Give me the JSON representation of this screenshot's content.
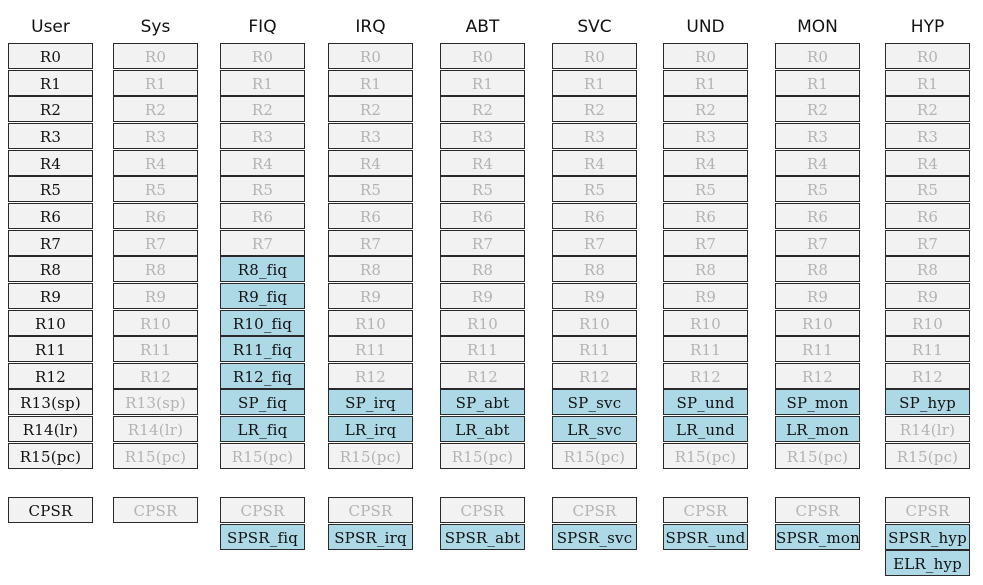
{
  "columns": [
    {
      "title": "User",
      "registers": [
        {
          "label": "R0",
          "kind": "own"
        },
        {
          "label": "R1",
          "kind": "own"
        },
        {
          "label": "R2",
          "kind": "own"
        },
        {
          "label": "R3",
          "kind": "own"
        },
        {
          "label": "R4",
          "kind": "own"
        },
        {
          "label": "R5",
          "kind": "own"
        },
        {
          "label": "R6",
          "kind": "own"
        },
        {
          "label": "R7",
          "kind": "own"
        },
        {
          "label": "R8",
          "kind": "own"
        },
        {
          "label": "R9",
          "kind": "own"
        },
        {
          "label": "R10",
          "kind": "own"
        },
        {
          "label": "R11",
          "kind": "own"
        },
        {
          "label": "R12",
          "kind": "own"
        },
        {
          "label": "R13(sp)",
          "kind": "own"
        },
        {
          "label": "R14(lr)",
          "kind": "own"
        },
        {
          "label": "R15(pc)",
          "kind": "own"
        }
      ],
      "status": [
        {
          "label": "CPSR",
          "kind": "own"
        }
      ]
    },
    {
      "title": "Sys",
      "registers": [
        {
          "label": "R0",
          "kind": "shared"
        },
        {
          "label": "R1",
          "kind": "shared"
        },
        {
          "label": "R2",
          "kind": "shared"
        },
        {
          "label": "R3",
          "kind": "shared"
        },
        {
          "label": "R4",
          "kind": "shared"
        },
        {
          "label": "R5",
          "kind": "shared"
        },
        {
          "label": "R6",
          "kind": "shared"
        },
        {
          "label": "R7",
          "kind": "shared"
        },
        {
          "label": "R8",
          "kind": "shared"
        },
        {
          "label": "R9",
          "kind": "shared"
        },
        {
          "label": "R10",
          "kind": "shared"
        },
        {
          "label": "R11",
          "kind": "shared"
        },
        {
          "label": "R12",
          "kind": "shared"
        },
        {
          "label": "R13(sp)",
          "kind": "shared"
        },
        {
          "label": "R14(lr)",
          "kind": "shared"
        },
        {
          "label": "R15(pc)",
          "kind": "shared"
        }
      ],
      "status": [
        {
          "label": "CPSR",
          "kind": "shared"
        }
      ]
    },
    {
      "title": "FIQ",
      "registers": [
        {
          "label": "R0",
          "kind": "shared"
        },
        {
          "label": "R1",
          "kind": "shared"
        },
        {
          "label": "R2",
          "kind": "shared"
        },
        {
          "label": "R3",
          "kind": "shared"
        },
        {
          "label": "R4",
          "kind": "shared"
        },
        {
          "label": "R5",
          "kind": "shared"
        },
        {
          "label": "R6",
          "kind": "shared"
        },
        {
          "label": "R7",
          "kind": "shared"
        },
        {
          "label": "R8_fiq",
          "kind": "banked"
        },
        {
          "label": "R9_fiq",
          "kind": "banked"
        },
        {
          "label": "R10_fiq",
          "kind": "banked"
        },
        {
          "label": "R11_fiq",
          "kind": "banked"
        },
        {
          "label": "R12_fiq",
          "kind": "banked"
        },
        {
          "label": "SP_fiq",
          "kind": "banked"
        },
        {
          "label": "LR_fiq",
          "kind": "banked"
        },
        {
          "label": "R15(pc)",
          "kind": "shared"
        }
      ],
      "status": [
        {
          "label": "CPSR",
          "kind": "shared"
        },
        {
          "label": "SPSR_fiq",
          "kind": "banked"
        }
      ]
    },
    {
      "title": "IRQ",
      "registers": [
        {
          "label": "R0",
          "kind": "shared"
        },
        {
          "label": "R1",
          "kind": "shared"
        },
        {
          "label": "R2",
          "kind": "shared"
        },
        {
          "label": "R3",
          "kind": "shared"
        },
        {
          "label": "R4",
          "kind": "shared"
        },
        {
          "label": "R5",
          "kind": "shared"
        },
        {
          "label": "R6",
          "kind": "shared"
        },
        {
          "label": "R7",
          "kind": "shared"
        },
        {
          "label": "R8",
          "kind": "shared"
        },
        {
          "label": "R9",
          "kind": "shared"
        },
        {
          "label": "R10",
          "kind": "shared"
        },
        {
          "label": "R11",
          "kind": "shared"
        },
        {
          "label": "R12",
          "kind": "shared"
        },
        {
          "label": "SP_irq",
          "kind": "banked"
        },
        {
          "label": "LR_irq",
          "kind": "banked"
        },
        {
          "label": "R15(pc)",
          "kind": "shared"
        }
      ],
      "status": [
        {
          "label": "CPSR",
          "kind": "shared"
        },
        {
          "label": "SPSR_irq",
          "kind": "banked"
        }
      ]
    },
    {
      "title": "ABT",
      "registers": [
        {
          "label": "R0",
          "kind": "shared"
        },
        {
          "label": "R1",
          "kind": "shared"
        },
        {
          "label": "R2",
          "kind": "shared"
        },
        {
          "label": "R3",
          "kind": "shared"
        },
        {
          "label": "R4",
          "kind": "shared"
        },
        {
          "label": "R5",
          "kind": "shared"
        },
        {
          "label": "R6",
          "kind": "shared"
        },
        {
          "label": "R7",
          "kind": "shared"
        },
        {
          "label": "R8",
          "kind": "shared"
        },
        {
          "label": "R9",
          "kind": "shared"
        },
        {
          "label": "R10",
          "kind": "shared"
        },
        {
          "label": "R11",
          "kind": "shared"
        },
        {
          "label": "R12",
          "kind": "shared"
        },
        {
          "label": "SP_abt",
          "kind": "banked"
        },
        {
          "label": "LR_abt",
          "kind": "banked"
        },
        {
          "label": "R15(pc)",
          "kind": "shared"
        }
      ],
      "status": [
        {
          "label": "CPSR",
          "kind": "shared"
        },
        {
          "label": "SPSR_abt",
          "kind": "banked"
        }
      ]
    },
    {
      "title": "SVC",
      "registers": [
        {
          "label": "R0",
          "kind": "shared"
        },
        {
          "label": "R1",
          "kind": "shared"
        },
        {
          "label": "R2",
          "kind": "shared"
        },
        {
          "label": "R3",
          "kind": "shared"
        },
        {
          "label": "R4",
          "kind": "shared"
        },
        {
          "label": "R5",
          "kind": "shared"
        },
        {
          "label": "R6",
          "kind": "shared"
        },
        {
          "label": "R7",
          "kind": "shared"
        },
        {
          "label": "R8",
          "kind": "shared"
        },
        {
          "label": "R9",
          "kind": "shared"
        },
        {
          "label": "R10",
          "kind": "shared"
        },
        {
          "label": "R11",
          "kind": "shared"
        },
        {
          "label": "R12",
          "kind": "shared"
        },
        {
          "label": "SP_svc",
          "kind": "banked"
        },
        {
          "label": "LR_svc",
          "kind": "banked"
        },
        {
          "label": "R15(pc)",
          "kind": "shared"
        }
      ],
      "status": [
        {
          "label": "CPSR",
          "kind": "shared"
        },
        {
          "label": "SPSR_svc",
          "kind": "banked"
        }
      ]
    },
    {
      "title": "UND",
      "registers": [
        {
          "label": "R0",
          "kind": "shared"
        },
        {
          "label": "R1",
          "kind": "shared"
        },
        {
          "label": "R2",
          "kind": "shared"
        },
        {
          "label": "R3",
          "kind": "shared"
        },
        {
          "label": "R4",
          "kind": "shared"
        },
        {
          "label": "R5",
          "kind": "shared"
        },
        {
          "label": "R6",
          "kind": "shared"
        },
        {
          "label": "R7",
          "kind": "shared"
        },
        {
          "label": "R8",
          "kind": "shared"
        },
        {
          "label": "R9",
          "kind": "shared"
        },
        {
          "label": "R10",
          "kind": "shared"
        },
        {
          "label": "R11",
          "kind": "shared"
        },
        {
          "label": "R12",
          "kind": "shared"
        },
        {
          "label": "SP_und",
          "kind": "banked"
        },
        {
          "label": "LR_und",
          "kind": "banked"
        },
        {
          "label": "R15(pc)",
          "kind": "shared"
        }
      ],
      "status": [
        {
          "label": "CPSR",
          "kind": "shared"
        },
        {
          "label": "SPSR_und",
          "kind": "banked"
        }
      ]
    },
    {
      "title": "MON",
      "registers": [
        {
          "label": "R0",
          "kind": "shared"
        },
        {
          "label": "R1",
          "kind": "shared"
        },
        {
          "label": "R2",
          "kind": "shared"
        },
        {
          "label": "R3",
          "kind": "shared"
        },
        {
          "label": "R4",
          "kind": "shared"
        },
        {
          "label": "R5",
          "kind": "shared"
        },
        {
          "label": "R6",
          "kind": "shared"
        },
        {
          "label": "R7",
          "kind": "shared"
        },
        {
          "label": "R8",
          "kind": "shared"
        },
        {
          "label": "R9",
          "kind": "shared"
        },
        {
          "label": "R10",
          "kind": "shared"
        },
        {
          "label": "R11",
          "kind": "shared"
        },
        {
          "label": "R12",
          "kind": "shared"
        },
        {
          "label": "SP_mon",
          "kind": "banked"
        },
        {
          "label": "LR_mon",
          "kind": "banked"
        },
        {
          "label": "R15(pc)",
          "kind": "shared"
        }
      ],
      "status": [
        {
          "label": "CPSR",
          "kind": "shared"
        },
        {
          "label": "SPSR_mon",
          "kind": "banked"
        }
      ]
    },
    {
      "title": "HYP",
      "registers": [
        {
          "label": "R0",
          "kind": "shared"
        },
        {
          "label": "R1",
          "kind": "shared"
        },
        {
          "label": "R2",
          "kind": "shared"
        },
        {
          "label": "R3",
          "kind": "shared"
        },
        {
          "label": "R4",
          "kind": "shared"
        },
        {
          "label": "R5",
          "kind": "shared"
        },
        {
          "label": "R6",
          "kind": "shared"
        },
        {
          "label": "R7",
          "kind": "shared"
        },
        {
          "label": "R8",
          "kind": "shared"
        },
        {
          "label": "R9",
          "kind": "shared"
        },
        {
          "label": "R10",
          "kind": "shared"
        },
        {
          "label": "R11",
          "kind": "shared"
        },
        {
          "label": "R12",
          "kind": "shared"
        },
        {
          "label": "SP_hyp",
          "kind": "banked"
        },
        {
          "label": "R14(lr)",
          "kind": "shared"
        },
        {
          "label": "R15(pc)",
          "kind": "shared"
        }
      ],
      "status": [
        {
          "label": "CPSR",
          "kind": "shared"
        },
        {
          "label": "SPSR_hyp",
          "kind": "banked"
        },
        {
          "label": "ELR_hyp",
          "kind": "banked"
        }
      ]
    }
  ],
  "colors": {
    "banked_fill": "#add8e6",
    "cell_fill": "#f2f2f2",
    "shared_text": "#b3b3b3",
    "own_text": "#111111",
    "border": "#2a2a2a"
  }
}
